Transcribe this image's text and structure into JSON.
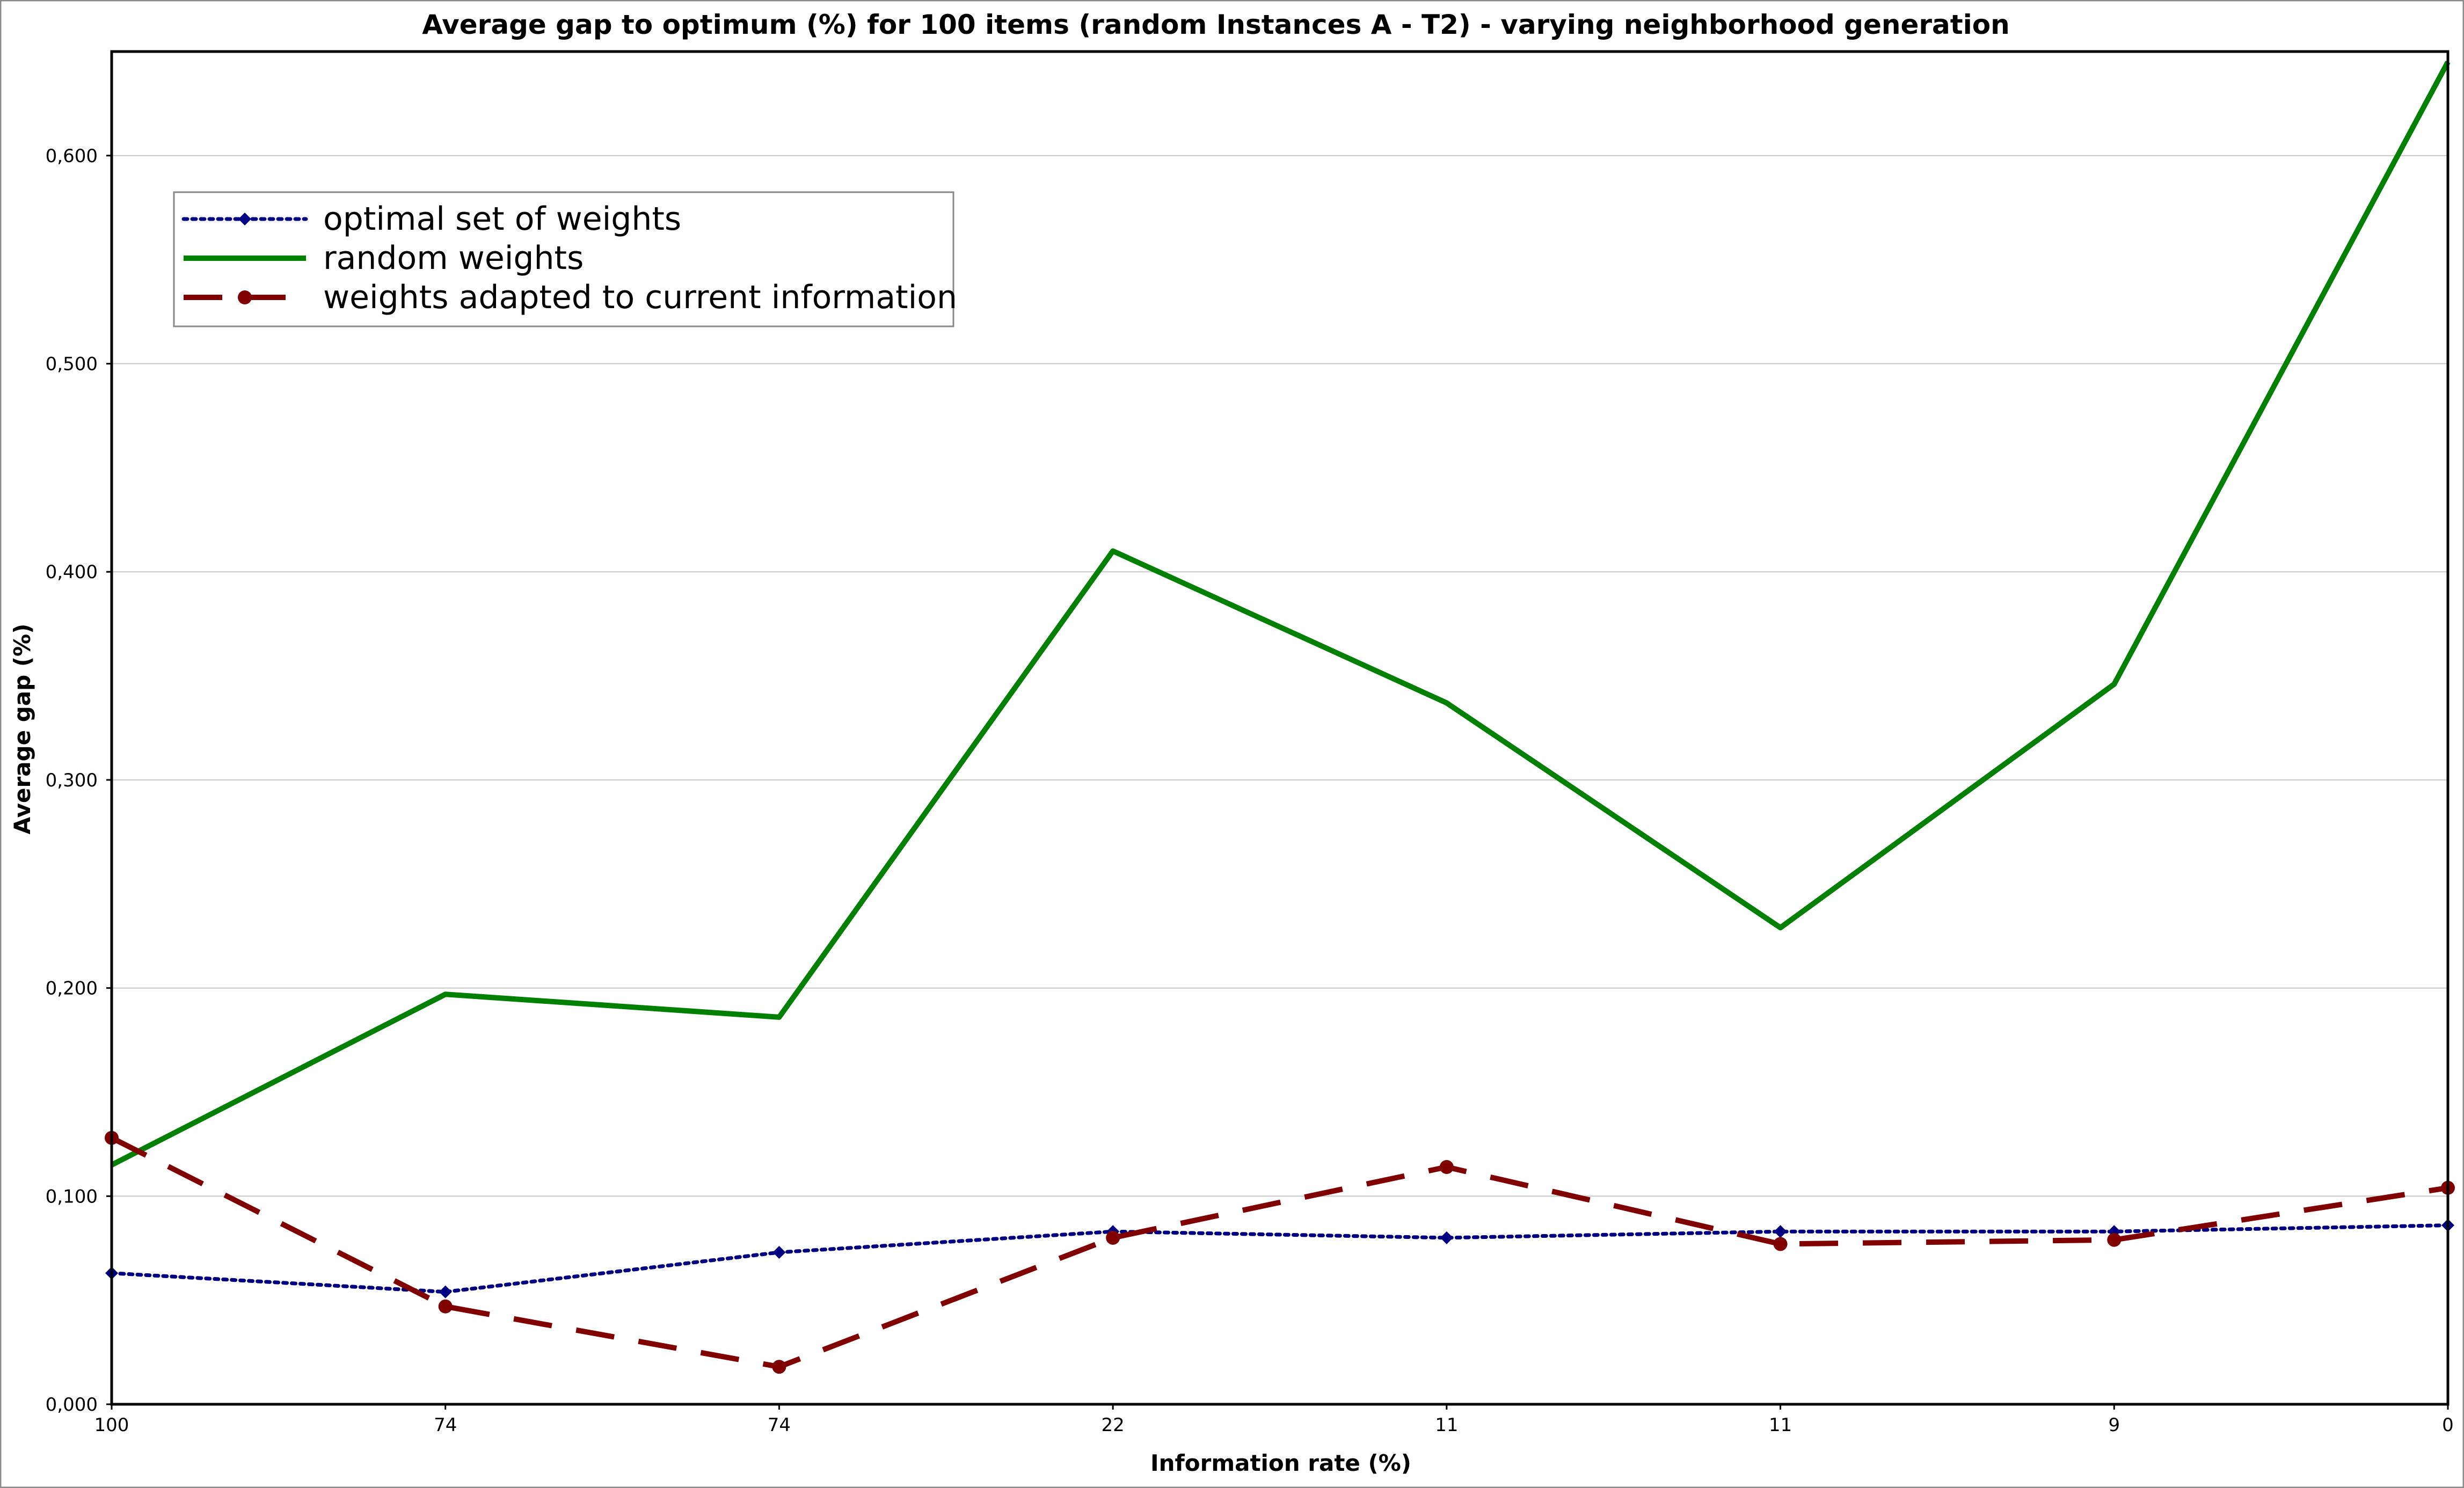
{
  "chart_data": {
    "type": "line",
    "title": "Average gap to optimum (%) for 100 items (random Instances A - T2) - varying neighborhood generation",
    "xlabel": "Information rate (%)",
    "ylabel": "Average gap (%)",
    "categories": [
      "100",
      "74",
      "74",
      "22",
      "11",
      "11",
      "9",
      "0"
    ],
    "ylim": [
      0,
      0.65
    ],
    "yticks": [
      0,
      0.1,
      0.2,
      0.3,
      0.4,
      0.5,
      0.6
    ],
    "ytick_labels": [
      "0,000",
      "0,100",
      "0,200",
      "0,300",
      "0,400",
      "0,500",
      "0,600"
    ],
    "grid": "horizontal",
    "legend_position": "top-left",
    "series": [
      {
        "name": "optimal set of weights",
        "color": "#000080",
        "style": "dotted",
        "marker": "diamond",
        "values": [
          0.063,
          0.054,
          0.073,
          0.083,
          0.08,
          0.083,
          0.083,
          0.086
        ]
      },
      {
        "name": "random weights",
        "color": "#008000",
        "style": "solid",
        "marker": "none",
        "values": [
          0.115,
          0.197,
          0.186,
          0.41,
          0.337,
          0.229,
          0.346,
          0.645
        ]
      },
      {
        "name": "weights adapted to current information",
        "color": "#800000",
        "style": "dashed",
        "marker": "circle",
        "values": [
          0.128,
          0.047,
          0.018,
          0.08,
          0.114,
          0.077,
          0.079,
          0.104
        ]
      }
    ]
  }
}
